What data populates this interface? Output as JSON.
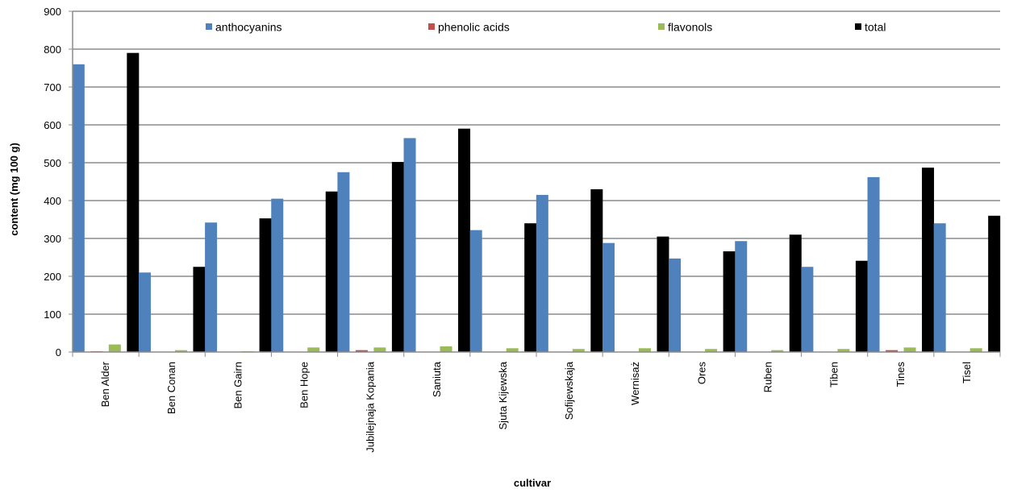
{
  "chart_data": {
    "type": "bar",
    "title": "",
    "xlabel": "cultivar",
    "ylabel": "content (mg 100 g)",
    "ylim": [
      0,
      900
    ],
    "yticks": [
      0,
      100,
      200,
      300,
      400,
      500,
      600,
      700,
      800,
      900
    ],
    "grid": true,
    "legend_position": "top",
    "categories": [
      "Ben Alder",
      "Ben Conan",
      "Ben Gairn",
      "Ben Hope",
      "Jubilejnaja Kopania",
      "Saniuta",
      "Sjuta  Kijewska",
      "Sofijewskaja",
      "Wernisaż",
      "Ores",
      "Ruben",
      "Tiben",
      "Tines",
      "Tisel"
    ],
    "series": [
      {
        "name": "anthocyanins",
        "color": "#4F81BD",
        "values": [
          760,
          210,
          342,
          405,
          475,
          565,
          322,
          415,
          288,
          247,
          293,
          225,
          462,
          340
        ]
      },
      {
        "name": "phenolic acids",
        "color": "#C0504D",
        "values": [
          2,
          1,
          1,
          1,
          5,
          1,
          1,
          1,
          1,
          1,
          1,
          1,
          5,
          1
        ]
      },
      {
        "name": "flavonols",
        "color": "#9BBB59",
        "values": [
          20,
          5,
          2,
          12,
          12,
          15,
          10,
          8,
          10,
          8,
          5,
          8,
          12,
          10
        ]
      },
      {
        "name": "total",
        "color": "#000000",
        "values": [
          790,
          225,
          353,
          424,
          502,
          590,
          340,
          430,
          305,
          266,
          310,
          241,
          487,
          360
        ]
      }
    ]
  }
}
